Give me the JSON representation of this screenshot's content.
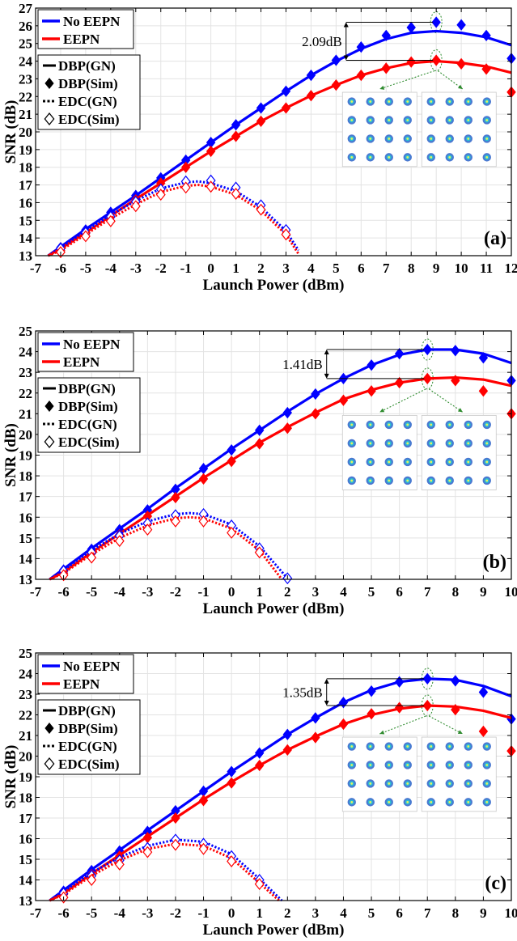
{
  "chart_data": [
    {
      "type": "line",
      "panel_label": "(a)",
      "xlabel": "Launch Power (dBm)",
      "ylabel": "SNR (dB)",
      "xlim": [
        -7,
        12
      ],
      "ylim": [
        13,
        27
      ],
      "xticks": [
        -7,
        -6,
        -5,
        -4,
        -3,
        -2,
        -1,
        0,
        1,
        2,
        3,
        4,
        5,
        6,
        7,
        8,
        9,
        10,
        11,
        12
      ],
      "yticks": [
        13,
        14,
        15,
        16,
        17,
        18,
        19,
        20,
        21,
        22,
        23,
        24,
        25,
        26,
        27
      ],
      "grid": true,
      "legend_placement": "top-left",
      "legend": {
        "color_entries": [
          {
            "label": "No EEPN",
            "color": "#0000ff"
          },
          {
            "label": "EEPN",
            "color": "#ff0000"
          }
        ],
        "style_entries": [
          "DBP(GN)",
          "DBP(Sim)",
          "EDC(GN)",
          "EDC(Sim)"
        ]
      },
      "annotation": {
        "text": "2.09dB",
        "x": 9,
        "y_top": 26.2,
        "y_bottom": 24.05
      },
      "series": [
        {
          "name": "DBP(GN)",
          "group": "No EEPN",
          "color": "#0000ff",
          "style": "solid",
          "x": [
            -6.5,
            -6,
            -5,
            -4,
            -3,
            -2,
            -1,
            0,
            1,
            2,
            3,
            4,
            5,
            6,
            7,
            8,
            9,
            10,
            11,
            12
          ],
          "y": [
            13.0,
            13.5,
            14.5,
            15.45,
            16.4,
            17.4,
            18.4,
            19.4,
            20.4,
            21.35,
            22.3,
            23.2,
            24.0,
            24.7,
            25.25,
            25.6,
            25.7,
            25.6,
            25.35,
            24.9
          ]
        },
        {
          "name": "DBP(Sim)",
          "group": "No EEPN",
          "color": "#0000ff",
          "style": "filled-diamond",
          "x": [
            -6,
            -5,
            -4,
            -3,
            -2,
            -1,
            0,
            1,
            2,
            3,
            4,
            5,
            6,
            7,
            8,
            9,
            10,
            11,
            12
          ],
          "y": [
            13.45,
            14.45,
            15.45,
            16.4,
            17.4,
            18.4,
            19.4,
            20.4,
            21.35,
            22.3,
            23.2,
            24.05,
            24.8,
            25.45,
            25.9,
            26.2,
            26.05,
            25.45,
            24.15
          ]
        },
        {
          "name": "DBP(GN)",
          "group": "EEPN",
          "color": "#ff0000",
          "style": "solid",
          "x": [
            -6.5,
            -6,
            -5,
            -4,
            -3,
            -2,
            -1,
            0,
            1,
            2,
            3,
            4,
            5,
            6,
            7,
            8,
            9,
            10,
            11,
            12
          ],
          "y": [
            13.0,
            13.4,
            14.3,
            15.25,
            16.2,
            17.1,
            18.0,
            18.9,
            19.75,
            20.6,
            21.35,
            22.05,
            22.65,
            23.2,
            23.6,
            23.9,
            24.0,
            23.9,
            23.7,
            23.35
          ]
        },
        {
          "name": "DBP(Sim)",
          "group": "EEPN",
          "color": "#ff0000",
          "style": "filled-diamond",
          "x": [
            -6,
            -5,
            -4,
            -3,
            -2,
            -1,
            0,
            1,
            2,
            3,
            4,
            5,
            6,
            7,
            8,
            9,
            10,
            11,
            12
          ],
          "y": [
            13.3,
            14.25,
            15.2,
            16.15,
            17.1,
            18.0,
            18.9,
            19.75,
            20.6,
            21.35,
            22.05,
            22.65,
            23.2,
            23.6,
            23.95,
            24.05,
            23.85,
            23.55,
            22.25
          ]
        },
        {
          "name": "EDC(GN)",
          "group": "No EEPN",
          "color": "#0000ff",
          "style": "dotted",
          "x": [
            -6.5,
            -6,
            -5,
            -4,
            -3,
            -2,
            -1,
            -0.5,
            0,
            1,
            2,
            3,
            3.5
          ],
          "y": [
            13.0,
            13.45,
            14.4,
            15.3,
            16.1,
            16.8,
            17.15,
            17.2,
            17.1,
            16.65,
            15.75,
            14.4,
            13.3
          ]
        },
        {
          "name": "EDC(Sim)",
          "group": "No EEPN",
          "color": "#0000ff",
          "style": "open-diamond",
          "x": [
            -6,
            -5,
            -4,
            -3,
            -2,
            -1,
            0,
            1,
            2,
            3
          ],
          "y": [
            13.4,
            14.3,
            15.2,
            16.05,
            16.75,
            17.2,
            17.25,
            16.85,
            15.85,
            14.45
          ]
        },
        {
          "name": "EDC(GN)",
          "group": "EEPN",
          "color": "#ff0000",
          "style": "dotted",
          "x": [
            -6.5,
            -6,
            -5,
            -4,
            -3,
            -2,
            -1,
            -0.5,
            0,
            1,
            2,
            3,
            3.5
          ],
          "y": [
            13.0,
            13.3,
            14.2,
            15.1,
            15.9,
            16.6,
            16.95,
            17.0,
            16.9,
            16.45,
            15.55,
            14.2,
            13.1
          ]
        },
        {
          "name": "EDC(Sim)",
          "group": "EEPN",
          "color": "#ff0000",
          "style": "open-diamond",
          "x": [
            -6,
            -5,
            -4,
            -3,
            -2,
            -1,
            0,
            1,
            2,
            3
          ],
          "y": [
            13.2,
            14.1,
            14.95,
            15.8,
            16.45,
            16.85,
            16.9,
            16.5,
            15.6,
            14.2
          ]
        }
      ]
    },
    {
      "type": "line",
      "panel_label": "(b)",
      "xlabel": "Launch Power (dBm)",
      "ylabel": "SNR (dB)",
      "xlim": [
        -7,
        10
      ],
      "ylim": [
        13,
        25
      ],
      "xticks": [
        -7,
        -6,
        -5,
        -4,
        -3,
        -2,
        -1,
        0,
        1,
        2,
        3,
        4,
        5,
        6,
        7,
        8,
        9,
        10
      ],
      "yticks": [
        13,
        14,
        15,
        16,
        17,
        18,
        19,
        20,
        21,
        22,
        23,
        24,
        25
      ],
      "grid": true,
      "legend_placement": "top-left",
      "legend": {
        "color_entries": [
          {
            "label": "No EEPN",
            "color": "#0000ff"
          },
          {
            "label": "EEPN",
            "color": "#ff0000"
          }
        ],
        "style_entries": [
          "DBP(GN)",
          "DBP(Sim)",
          "EDC(GN)",
          "EDC(Sim)"
        ]
      },
      "annotation": {
        "text": "1.41dB",
        "x": 7,
        "y_top": 24.1,
        "y_bottom": 22.7
      },
      "series": [
        {
          "name": "DBP(GN)",
          "group": "No EEPN",
          "color": "#0000ff",
          "style": "solid",
          "x": [
            -6.5,
            -6,
            -5,
            -4,
            -3,
            -2,
            -1,
            0,
            1,
            2,
            3,
            4,
            5,
            6,
            7,
            8,
            9,
            10
          ],
          "y": [
            13.0,
            13.5,
            14.5,
            15.45,
            16.4,
            17.4,
            18.35,
            19.3,
            20.2,
            21.1,
            21.95,
            22.7,
            23.35,
            23.85,
            24.1,
            24.1,
            23.9,
            23.45
          ]
        },
        {
          "name": "DBP(Sim)",
          "group": "No EEPN",
          "color": "#0000ff",
          "style": "filled-diamond",
          "x": [
            -6,
            -5,
            -4,
            -3,
            -2,
            -1,
            0,
            1,
            2,
            3,
            4,
            5,
            6,
            7,
            8,
            9,
            10
          ],
          "y": [
            13.45,
            14.45,
            15.4,
            16.35,
            17.35,
            18.35,
            19.25,
            20.2,
            21.05,
            21.95,
            22.7,
            23.35,
            23.9,
            24.1,
            24.05,
            23.7,
            22.6
          ]
        },
        {
          "name": "DBP(GN)",
          "group": "EEPN",
          "color": "#ff0000",
          "style": "solid",
          "x": [
            -6.5,
            -6,
            -5,
            -4,
            -3,
            -2,
            -1,
            0,
            1,
            2,
            3,
            4,
            5,
            6,
            7,
            8,
            9,
            10
          ],
          "y": [
            13.0,
            13.35,
            14.3,
            15.2,
            16.1,
            17.0,
            17.9,
            18.75,
            19.6,
            20.35,
            21.05,
            21.7,
            22.15,
            22.5,
            22.7,
            22.75,
            22.65,
            22.35
          ]
        },
        {
          "name": "DBP(Sim)",
          "group": "EEPN",
          "color": "#ff0000",
          "style": "filled-diamond",
          "x": [
            -6,
            -5,
            -4,
            -3,
            -2,
            -1,
            0,
            1,
            2,
            3,
            4,
            5,
            6,
            7,
            8,
            9,
            10
          ],
          "y": [
            13.3,
            14.25,
            15.15,
            16.05,
            16.95,
            17.85,
            18.7,
            19.55,
            20.3,
            21.0,
            21.65,
            22.1,
            22.5,
            22.7,
            22.6,
            22.1,
            21.0
          ]
        },
        {
          "name": "EDC(GN)",
          "group": "No EEPN",
          "color": "#0000ff",
          "style": "dotted",
          "x": [
            -6.5,
            -6,
            -5,
            -4,
            -3,
            -2,
            -1.5,
            -1,
            0,
            1,
            2
          ],
          "y": [
            13.0,
            13.45,
            14.4,
            15.2,
            15.8,
            16.15,
            16.2,
            16.15,
            15.65,
            14.6,
            13.05
          ]
        },
        {
          "name": "EDC(Sim)",
          "group": "No EEPN",
          "color": "#0000ff",
          "style": "open-diamond",
          "x": [
            -6,
            -5,
            -4,
            -3,
            -2,
            -1,
            0,
            1,
            2
          ],
          "y": [
            13.4,
            14.3,
            15.1,
            15.7,
            16.1,
            16.15,
            15.6,
            14.5,
            13.05
          ]
        },
        {
          "name": "EDC(GN)",
          "group": "EEPN",
          "color": "#ff0000",
          "style": "dotted",
          "x": [
            -6.5,
            -6,
            -5,
            -4,
            -3,
            -2,
            -1.5,
            -1,
            0,
            1,
            1.8
          ],
          "y": [
            13.0,
            13.3,
            14.2,
            15.0,
            15.6,
            15.95,
            16.0,
            15.95,
            15.45,
            14.4,
            13.0
          ]
        },
        {
          "name": "EDC(Sim)",
          "group": "EEPN",
          "color": "#ff0000",
          "style": "open-diamond",
          "x": [
            -6,
            -5,
            -4,
            -3,
            -2,
            -1,
            0,
            1
          ],
          "y": [
            13.2,
            14.05,
            14.85,
            15.4,
            15.8,
            15.8,
            15.25,
            14.3
          ]
        }
      ]
    },
    {
      "type": "line",
      "panel_label": "(c)",
      "xlabel": "Launch Power (dBm)",
      "ylabel": "SNR (dB)",
      "xlim": [
        -7,
        10
      ],
      "ylim": [
        13,
        25
      ],
      "xticks": [
        -7,
        -6,
        -5,
        -4,
        -3,
        -2,
        -1,
        0,
        1,
        2,
        3,
        4,
        5,
        6,
        7,
        8,
        9,
        10
      ],
      "yticks": [
        13,
        14,
        15,
        16,
        17,
        18,
        19,
        20,
        21,
        22,
        23,
        24,
        25
      ],
      "grid": true,
      "legend_placement": "top-left",
      "legend": {
        "color_entries": [
          {
            "label": "No EEPN",
            "color": "#0000ff"
          },
          {
            "label": "EEPN",
            "color": "#ff0000"
          }
        ],
        "style_entries": [
          "DBP(GN)",
          "DBP(Sim)",
          "EDC(GN)",
          "EDC(Sim)"
        ]
      },
      "annotation": {
        "text": "1.35dB",
        "x": 7,
        "y_top": 23.75,
        "y_bottom": 22.45
      },
      "series": [
        {
          "name": "DBP(GN)",
          "group": "No EEPN",
          "color": "#0000ff",
          "style": "solid",
          "x": [
            -6.5,
            -6,
            -5,
            -4,
            -3,
            -2,
            -1,
            0,
            1,
            2,
            3,
            4,
            5,
            6,
            7,
            8,
            9,
            10
          ],
          "y": [
            13.0,
            13.5,
            14.5,
            15.45,
            16.4,
            17.35,
            18.3,
            19.25,
            20.15,
            21.05,
            21.85,
            22.6,
            23.2,
            23.6,
            23.75,
            23.7,
            23.4,
            22.9
          ]
        },
        {
          "name": "DBP(Sim)",
          "group": "No EEPN",
          "color": "#0000ff",
          "style": "filled-diamond",
          "x": [
            -6,
            -5,
            -4,
            -3,
            -2,
            -1,
            0,
            1,
            2,
            3,
            4,
            5,
            6,
            7,
            8,
            9,
            10
          ],
          "y": [
            13.45,
            14.45,
            15.4,
            16.35,
            17.35,
            18.3,
            19.25,
            20.15,
            21.05,
            21.85,
            22.6,
            23.15,
            23.6,
            23.75,
            23.65,
            23.1,
            21.8
          ]
        },
        {
          "name": "DBP(GN)",
          "group": "EEPN",
          "color": "#ff0000",
          "style": "solid",
          "x": [
            -6.5,
            -6,
            -5,
            -4,
            -3,
            -2,
            -1,
            0,
            1,
            2,
            3,
            4,
            5,
            6,
            7,
            8,
            9,
            10
          ],
          "y": [
            13.0,
            13.35,
            14.3,
            15.2,
            16.1,
            17.0,
            17.9,
            18.75,
            19.55,
            20.3,
            20.95,
            21.55,
            22.0,
            22.3,
            22.45,
            22.4,
            22.2,
            21.85
          ]
        },
        {
          "name": "DBP(Sim)",
          "group": "EEPN",
          "color": "#ff0000",
          "style": "filled-diamond",
          "x": [
            -6,
            -5,
            -4,
            -3,
            -2,
            -1,
            0,
            1,
            2,
            3,
            4,
            5,
            6,
            7,
            8,
            9,
            10
          ],
          "y": [
            13.3,
            14.25,
            15.15,
            16.05,
            17.0,
            17.85,
            18.7,
            19.55,
            20.3,
            20.9,
            21.55,
            22.05,
            22.35,
            22.45,
            22.25,
            21.2,
            20.25
          ]
        },
        {
          "name": "EDC(GN)",
          "group": "No EEPN",
          "color": "#0000ff",
          "style": "dotted",
          "x": [
            -6.5,
            -6,
            -5,
            -4,
            -3,
            -2,
            -1,
            0,
            1,
            1.8
          ],
          "y": [
            13.0,
            13.45,
            14.35,
            15.1,
            15.65,
            15.95,
            15.85,
            15.25,
            14.05,
            13.0
          ]
        },
        {
          "name": "EDC(Sim)",
          "group": "No EEPN",
          "color": "#0000ff",
          "style": "open-diamond",
          "x": [
            -6,
            -5,
            -4,
            -3,
            -2,
            -1,
            0,
            1
          ],
          "y": [
            13.35,
            14.2,
            14.95,
            15.55,
            15.95,
            15.75,
            15.15,
            14.0
          ]
        },
        {
          "name": "EDC(GN)",
          "group": "EEPN",
          "color": "#ff0000",
          "style": "dotted",
          "x": [
            -6.5,
            -6,
            -5,
            -4,
            -3,
            -2,
            -1,
            0,
            1,
            1.7
          ],
          "y": [
            13.0,
            13.3,
            14.2,
            14.95,
            15.5,
            15.75,
            15.65,
            15.05,
            13.85,
            13.0
          ]
        },
        {
          "name": "EDC(Sim)",
          "group": "EEPN",
          "color": "#ff0000",
          "style": "open-diamond",
          "x": [
            -6,
            -5,
            -4,
            -3,
            -2,
            -1,
            0,
            1
          ],
          "y": [
            13.15,
            14.0,
            14.75,
            15.35,
            15.7,
            15.5,
            14.9,
            13.8
          ]
        }
      ]
    }
  ]
}
